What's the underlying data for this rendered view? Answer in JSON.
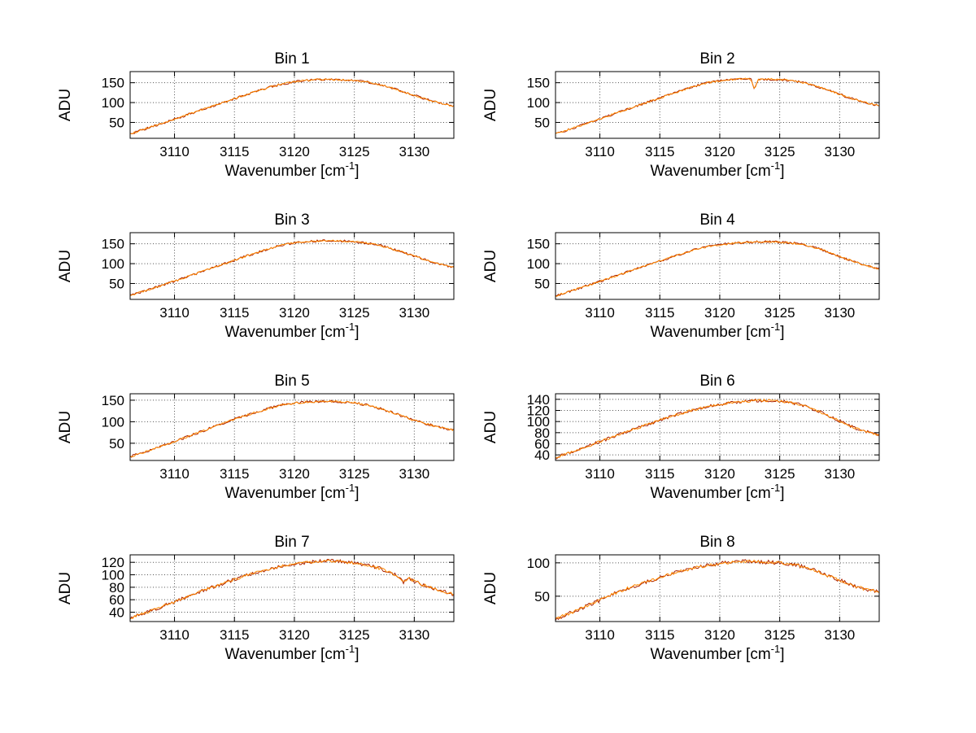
{
  "figure": {
    "background": "#ffffff",
    "axes_color": "#000000",
    "grid_color": "#333333"
  },
  "chart_data": {
    "type": "line",
    "grid": true,
    "legend": "none",
    "xlabel": {
      "pre": "Wavenumber [cm",
      "sup": "-1",
      "post": "]"
    },
    "ylabel": "ADU",
    "x_ticks": [
      3110,
      3115,
      3120,
      3125,
      3130
    ],
    "xlim": [
      3106.3,
      3133.3
    ],
    "series_colors": [
      "#aa2200",
      "#ff8800"
    ],
    "noise_amp": 2.2,
    "bins": [
      {
        "title": "Bin 1",
        "y_ticks": [
          50,
          100,
          150
        ],
        "ylim": [
          10,
          178
        ],
        "anchors": [
          [
            3106,
            18
          ],
          [
            3108,
            38
          ],
          [
            3110,
            58
          ],
          [
            3112,
            79
          ],
          [
            3114,
            99
          ],
          [
            3116,
            120
          ],
          [
            3117,
            130
          ],
          [
            3118,
            139
          ],
          [
            3119,
            147
          ],
          [
            3120,
            152
          ],
          [
            3121,
            156
          ],
          [
            3122,
            158
          ],
          [
            3123,
            158
          ],
          [
            3124,
            157
          ],
          [
            3125,
            156
          ],
          [
            3126,
            152
          ],
          [
            3127,
            146
          ],
          [
            3128,
            138
          ],
          [
            3129,
            128
          ],
          [
            3130,
            118
          ],
          [
            3131,
            108
          ],
          [
            3132,
            100
          ],
          [
            3133,
            93
          ],
          [
            3134,
            88
          ]
        ]
      },
      {
        "title": "Bin 2",
        "y_ticks": [
          50,
          100,
          150
        ],
        "ylim": [
          10,
          178
        ],
        "anchors": [
          [
            3106,
            18
          ],
          [
            3108,
            38
          ],
          [
            3110,
            59
          ],
          [
            3112,
            80
          ],
          [
            3114,
            101
          ],
          [
            3116,
            122
          ],
          [
            3118,
            142
          ],
          [
            3119,
            150
          ],
          [
            3120,
            155
          ],
          [
            3121,
            158
          ],
          [
            3122,
            160
          ],
          [
            3122.6,
            159
          ],
          [
            3122.9,
            133
          ],
          [
            3123.2,
            158
          ],
          [
            3124,
            159
          ],
          [
            3125,
            158
          ],
          [
            3126,
            155
          ],
          [
            3127,
            150
          ],
          [
            3128,
            142
          ],
          [
            3129,
            132
          ],
          [
            3130,
            121
          ],
          [
            3131,
            110
          ],
          [
            3132,
            101
          ],
          [
            3133,
            94
          ],
          [
            3134,
            89
          ]
        ]
      },
      {
        "title": "Bin 3",
        "y_ticks": [
          50,
          100,
          150
        ],
        "ylim": [
          10,
          178
        ],
        "anchors": [
          [
            3106,
            17
          ],
          [
            3108,
            36
          ],
          [
            3110,
            56
          ],
          [
            3112,
            77
          ],
          [
            3114,
            98
          ],
          [
            3116,
            119
          ],
          [
            3118,
            139
          ],
          [
            3119,
            147
          ],
          [
            3120,
            152
          ],
          [
            3121,
            155
          ],
          [
            3122,
            157
          ],
          [
            3123,
            158
          ],
          [
            3124,
            157
          ],
          [
            3125,
            155
          ],
          [
            3126,
            152
          ],
          [
            3127,
            147
          ],
          [
            3128,
            139
          ],
          [
            3129,
            129
          ],
          [
            3130,
            119
          ],
          [
            3131,
            109
          ],
          [
            3132,
            100
          ],
          [
            3133,
            93
          ],
          [
            3134,
            89
          ]
        ]
      },
      {
        "title": "Bin 4",
        "y_ticks": [
          50,
          100,
          150
        ],
        "ylim": [
          10,
          178
        ],
        "anchors": [
          [
            3106,
            16
          ],
          [
            3108,
            35
          ],
          [
            3110,
            55
          ],
          [
            3112,
            76
          ],
          [
            3114,
            96
          ],
          [
            3116,
            117
          ],
          [
            3118,
            136
          ],
          [
            3119,
            143
          ],
          [
            3120,
            148
          ],
          [
            3121,
            151
          ],
          [
            3122,
            153
          ],
          [
            3123,
            155
          ],
          [
            3124,
            155
          ],
          [
            3125,
            154
          ],
          [
            3126,
            152
          ],
          [
            3127,
            148
          ],
          [
            3128,
            140
          ],
          [
            3129,
            130
          ],
          [
            3130,
            118
          ],
          [
            3131,
            107
          ],
          [
            3132,
            97
          ],
          [
            3133,
            89
          ],
          [
            3134,
            84
          ]
        ]
      },
      {
        "title": "Bin 5",
        "y_ticks": [
          50,
          100,
          150
        ],
        "ylim": [
          10,
          165
        ],
        "anchors": [
          [
            3106,
            16
          ],
          [
            3108,
            34
          ],
          [
            3110,
            54
          ],
          [
            3112,
            75
          ],
          [
            3114,
            96
          ],
          [
            3115,
            106
          ],
          [
            3116,
            115
          ],
          [
            3117,
            124
          ],
          [
            3118,
            132
          ],
          [
            3119,
            139
          ],
          [
            3120,
            143
          ],
          [
            3121,
            146
          ],
          [
            3122,
            147
          ],
          [
            3123,
            147
          ],
          [
            3124,
            146
          ],
          [
            3125,
            144
          ],
          [
            3126,
            139
          ],
          [
            3127,
            132
          ],
          [
            3128,
            123
          ],
          [
            3129,
            113
          ],
          [
            3130,
            103
          ],
          [
            3131,
            95
          ],
          [
            3132,
            88
          ],
          [
            3133,
            82
          ],
          [
            3134,
            78
          ]
        ]
      },
      {
        "title": "Bin 6",
        "y_ticks": [
          40,
          60,
          80,
          100,
          120,
          140
        ],
        "ylim": [
          30,
          150
        ],
        "anchors": [
          [
            3106,
            33
          ],
          [
            3108,
            48
          ],
          [
            3110,
            64
          ],
          [
            3112,
            80
          ],
          [
            3114,
            95
          ],
          [
            3116,
            110
          ],
          [
            3118,
            122
          ],
          [
            3119,
            127
          ],
          [
            3120,
            131
          ],
          [
            3121,
            134
          ],
          [
            3122,
            136
          ],
          [
            3123,
            138
          ],
          [
            3124,
            138
          ],
          [
            3125,
            137
          ],
          [
            3126,
            134
          ],
          [
            3127,
            129
          ],
          [
            3128,
            121
          ],
          [
            3129,
            111
          ],
          [
            3130,
            101
          ],
          [
            3131,
            91
          ],
          [
            3132,
            83
          ],
          [
            3133,
            77
          ],
          [
            3134,
            72
          ]
        ]
      },
      {
        "title": "Bin 7",
        "y_ticks": [
          40,
          60,
          80,
          100,
          120
        ],
        "ylim": [
          25,
          132
        ],
        "anchors": [
          [
            3106,
            28
          ],
          [
            3108,
            42
          ],
          [
            3110,
            57
          ],
          [
            3112,
            72
          ],
          [
            3114,
            86
          ],
          [
            3116,
            99
          ],
          [
            3118,
            110
          ],
          [
            3119,
            114
          ],
          [
            3120,
            117
          ],
          [
            3121,
            120
          ],
          [
            3122,
            122
          ],
          [
            3123,
            122
          ],
          [
            3124,
            121
          ],
          [
            3125,
            119
          ],
          [
            3126,
            116
          ],
          [
            3127,
            111
          ],
          [
            3128,
            104
          ],
          [
            3128.8,
            96
          ],
          [
            3129.1,
            88
          ],
          [
            3129.5,
            95
          ],
          [
            3130,
            90
          ],
          [
            3131,
            82
          ],
          [
            3132,
            75
          ],
          [
            3133,
            70
          ],
          [
            3134,
            66
          ]
        ]
      },
      {
        "title": "Bin 8",
        "y_ticks": [
          50,
          100
        ],
        "ylim": [
          12,
          112
        ],
        "anchors": [
          [
            3106,
            14
          ],
          [
            3108,
            28
          ],
          [
            3110,
            44
          ],
          [
            3112,
            60
          ],
          [
            3114,
            72
          ],
          [
            3116,
            84
          ],
          [
            3118,
            93
          ],
          [
            3119,
            96
          ],
          [
            3120,
            99
          ],
          [
            3121,
            101
          ],
          [
            3122,
            102
          ],
          [
            3123,
            102
          ],
          [
            3124,
            101
          ],
          [
            3125,
            100
          ],
          [
            3126,
            98
          ],
          [
            3127,
            94
          ],
          [
            3128,
            88
          ],
          [
            3129,
            81
          ],
          [
            3130,
            74
          ],
          [
            3131,
            67
          ],
          [
            3132,
            61
          ],
          [
            3133,
            57
          ],
          [
            3134,
            54
          ]
        ]
      }
    ]
  }
}
